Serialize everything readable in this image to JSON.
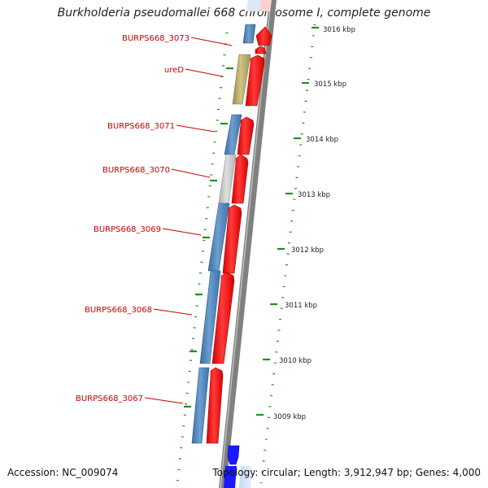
{
  "title": "Burkholderia pseudomallei 668 chromosome I, complete genome",
  "accession_text": "Accession: NC_009074",
  "summary_text": "Topology: circular; Length: 3,912,947 bp; Genes: 4,000",
  "colors": {
    "backbone": "#808080",
    "feature_red": "#ff0000",
    "label_red": "#cc0000",
    "cds_blue": "#4a82b8",
    "cds_olive": "#b8aa66",
    "cds_gray": "#c4c4c4",
    "tick_green": "#1f8f1f",
    "partial_blue": "#1a1aff"
  },
  "ruler_labels": [
    "3016 kbp",
    "3015 kbp",
    "3014 kbp",
    "3013 kbp",
    "3012 kbp",
    "3011 kbp",
    "3010 kbp",
    "3009 kbp"
  ],
  "gene_labels": [
    "BURPS668_3073",
    "ureD",
    "BURPS668_3071",
    "BURPS668_3070",
    "BURPS668_3069",
    "BURPS668_3068",
    "BURPS668_3067"
  ]
}
